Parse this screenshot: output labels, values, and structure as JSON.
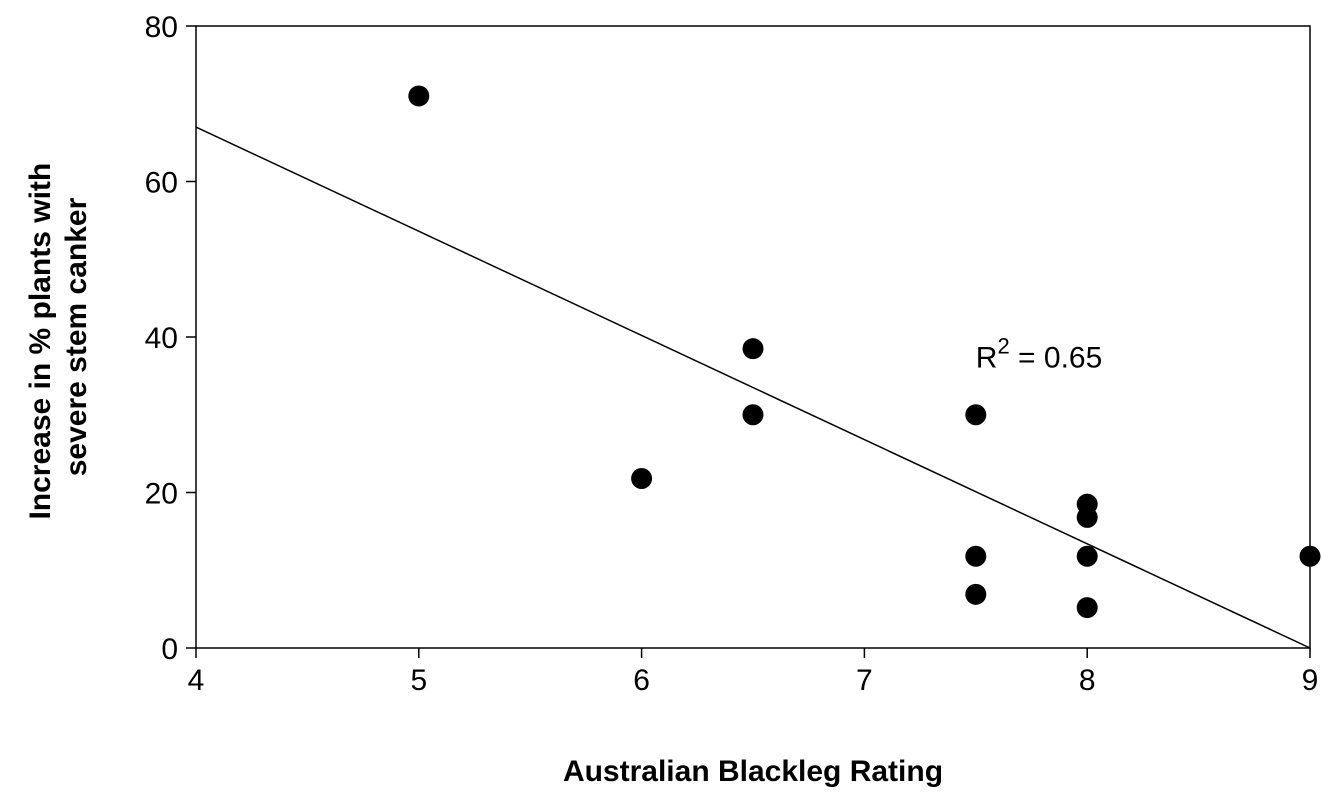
{
  "chart_data": {
    "type": "scatter",
    "title": "",
    "xlabel": "Australian Blackleg Rating",
    "ylabel_lines": [
      "Increase in % plants with",
      "severe stem canker"
    ],
    "xlim": [
      4,
      9
    ],
    "ylim": [
      0,
      80
    ],
    "x_ticks": [
      4,
      5,
      6,
      7,
      8,
      9
    ],
    "y_ticks": [
      0,
      20,
      40,
      60,
      80
    ],
    "grid": false,
    "legend": "none",
    "marker_color": "#000000",
    "points": [
      {
        "x": 5.0,
        "y": 71.0
      },
      {
        "x": 6.0,
        "y": 21.8
      },
      {
        "x": 6.5,
        "y": 38.5
      },
      {
        "x": 6.5,
        "y": 30.0
      },
      {
        "x": 7.5,
        "y": 30.0
      },
      {
        "x": 7.5,
        "y": 11.8
      },
      {
        "x": 7.5,
        "y": 6.9
      },
      {
        "x": 8.0,
        "y": 18.5
      },
      {
        "x": 8.0,
        "y": 16.8
      },
      {
        "x": 8.0,
        "y": 11.8
      },
      {
        "x": 8.0,
        "y": 5.2
      },
      {
        "x": 9.0,
        "y": 11.8
      }
    ],
    "trendline": {
      "type": "linear",
      "from": {
        "x": 4,
        "y": 67.0
      },
      "to": {
        "x": 9,
        "y": 0.0
      }
    },
    "annotation": {
      "base": "R",
      "superscript": "2",
      "rest": " = 0.65",
      "x": 7.5,
      "y": 37.5
    }
  }
}
